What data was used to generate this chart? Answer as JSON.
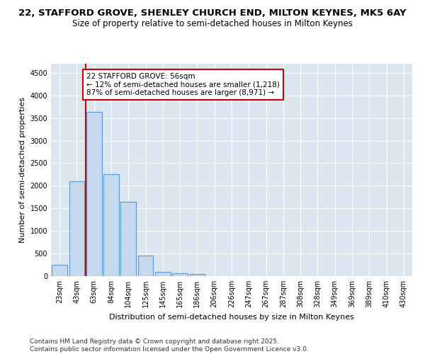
{
  "title_line1": "22, STAFFORD GROVE, SHENLEY CHURCH END, MILTON KEYNES, MK5 6AY",
  "title_line2": "Size of property relative to semi-detached houses in Milton Keynes",
  "xlabel": "Distribution of semi-detached houses by size in Milton Keynes",
  "ylabel": "Number of semi-detached properties",
  "categories": [
    "23sqm",
    "43sqm",
    "63sqm",
    "84sqm",
    "104sqm",
    "125sqm",
    "145sqm",
    "165sqm",
    "186sqm",
    "206sqm",
    "226sqm",
    "247sqm",
    "267sqm",
    "287sqm",
    "308sqm",
    "328sqm",
    "349sqm",
    "369sqm",
    "389sqm",
    "410sqm",
    "430sqm"
  ],
  "values": [
    250,
    2100,
    3630,
    2250,
    1640,
    450,
    100,
    60,
    40,
    0,
    0,
    0,
    0,
    0,
    0,
    0,
    0,
    0,
    0,
    0,
    0
  ],
  "bar_color": "#c5d8ee",
  "bar_edge_color": "#5b9bd5",
  "vline_x": 1.5,
  "vline_color": "#cc0000",
  "annotation_title": "22 STAFFORD GROVE: 56sqm",
  "annotation_line1": "← 12% of semi-detached houses are smaller (1,218)",
  "annotation_line2": "87% of semi-detached houses are larger (8,971) →",
  "ylim": [
    0,
    4700
  ],
  "yticks": [
    0,
    500,
    1000,
    1500,
    2000,
    2500,
    3000,
    3500,
    4000,
    4500
  ],
  "plot_bg_color": "#dce6f1",
  "grid_color": "#ffffff",
  "footer_line1": "Contains HM Land Registry data © Crown copyright and database right 2025.",
  "footer_line2": "Contains public sector information licensed under the Open Government Licence v3.0.",
  "title_fontsize": 9.5,
  "subtitle_fontsize": 8.5,
  "axis_label_fontsize": 8,
  "tick_fontsize": 7,
  "annotation_fontsize": 7.5,
  "footer_fontsize": 6.5
}
